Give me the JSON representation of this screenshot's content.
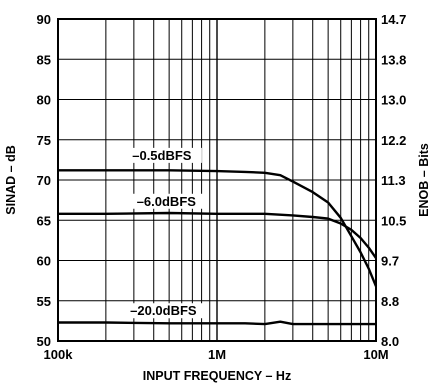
{
  "chart_data": {
    "type": "line",
    "x_scale": "log",
    "xlim": [
      100000,
      10000000
    ],
    "ylim": [
      50,
      90
    ],
    "grid": true,
    "xlabel": "INPUT FREQUENCY – Hz",
    "ylabel": "SINAD – dB",
    "ylabel_right": "ENOB – Bits",
    "x_tick_labels": [
      "100k",
      "1M",
      "10M"
    ],
    "x_tick_values": [
      100000,
      1000000,
      10000000
    ],
    "y_ticks": [
      "90",
      "85",
      "80",
      "75",
      "70",
      "65",
      "60",
      "55",
      "50"
    ],
    "y_tick_values": [
      90,
      85,
      80,
      75,
      70,
      65,
      60,
      55,
      50
    ],
    "y2_ticks": [
      "14.7",
      "13.8",
      "13.0",
      "12.2",
      "11.3",
      "10.5",
      "9.7",
      "8.8",
      "8.0"
    ],
    "series": [
      {
        "name": "–0.5dBFS",
        "x": [
          100000,
          200000,
          500000,
          1000000,
          1500000,
          2000000,
          2500000,
          3000000,
          4000000,
          5000000,
          6000000,
          7000000,
          8000000,
          9000000,
          10000000
        ],
        "y": [
          71.2,
          71.2,
          71.2,
          71.1,
          71.0,
          70.9,
          70.6,
          69.8,
          68.5,
          67.2,
          65.3,
          63.0,
          61.0,
          59.0,
          56.8
        ]
      },
      {
        "name": "–6.0dBFS",
        "x": [
          100000,
          200000,
          500000,
          1000000,
          1500000,
          2000000,
          3000000,
          4000000,
          5000000,
          6000000,
          7000000,
          8000000,
          9000000,
          10000000
        ],
        "y": [
          65.8,
          65.8,
          65.9,
          65.8,
          65.8,
          65.8,
          65.6,
          65.4,
          65.2,
          64.6,
          63.8,
          62.8,
          61.6,
          60.3
        ]
      },
      {
        "name": "–20.0dBFS",
        "x": [
          100000,
          200000,
          500000,
          1000000,
          1500000,
          2000000,
          2500000,
          3000000,
          4000000,
          5000000,
          7000000,
          10000000
        ],
        "y": [
          52.3,
          52.3,
          52.2,
          52.2,
          52.2,
          52.1,
          52.4,
          52.1,
          52.1,
          52.1,
          52.1,
          52.1
        ]
      }
    ]
  }
}
